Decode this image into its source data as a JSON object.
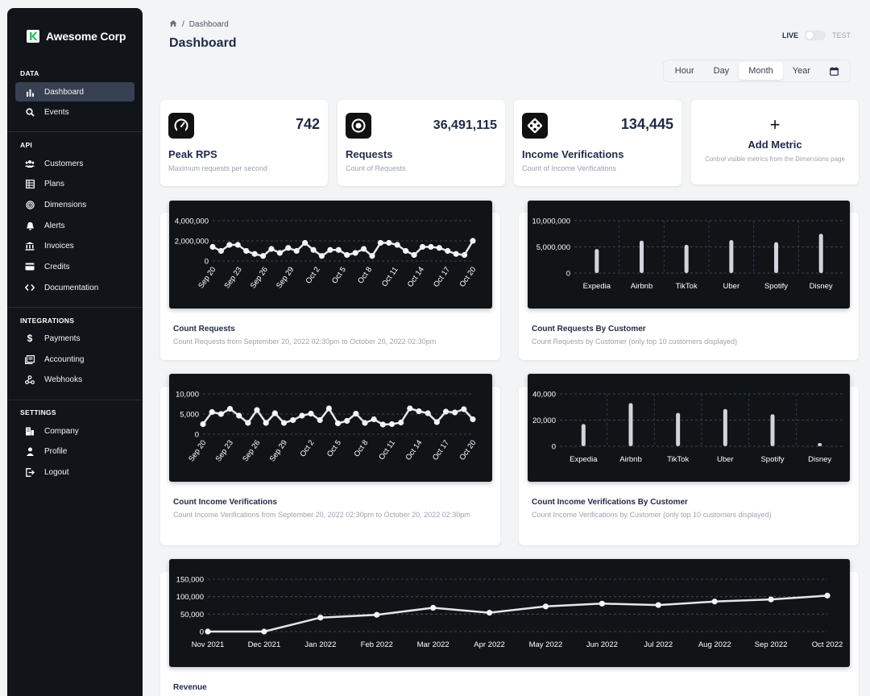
{
  "sidebar": {
    "brand": "Awesome Corp",
    "sections": {
      "data": "DATA",
      "api": "API",
      "integrations": "INTEGRATIONS",
      "settings": "SETTINGS"
    },
    "items": {
      "dashboard": "Dashboard",
      "events": "Events",
      "customers": "Customers",
      "plans": "Plans",
      "dimensions": "Dimensions",
      "alerts": "Alerts",
      "invoices": "Invoices",
      "credits": "Credits",
      "documentation": "Documentation",
      "payments": "Payments",
      "accounting": "Accounting",
      "webhooks": "Webhooks",
      "company": "Company",
      "profile": "Profile",
      "logout": "Logout"
    }
  },
  "header": {
    "breadcrumb_sep": "/",
    "breadcrumb": "Dashboard",
    "title": "Dashboard",
    "live": "LIVE",
    "test": "TEST",
    "ranges": [
      "Hour",
      "Day",
      "Month",
      "Year"
    ],
    "active_range": "Month"
  },
  "metrics": {
    "peak_rps": {
      "value": "742",
      "title": "Peak RPS",
      "sub": "Maximum requests per second"
    },
    "requests": {
      "value": "36,491,115",
      "title": "Requests",
      "sub": "Count of Requests"
    },
    "income": {
      "value": "134,445",
      "title": "Income Verifications",
      "sub": "Count of Income Verifications"
    },
    "add": {
      "plus": "+",
      "title": "Add Metric",
      "sub": "Control visible metrics from the Dimensions page"
    }
  },
  "charts": {
    "count_requests": {
      "title": "Count Requests",
      "sub": "Count Requests from September 20, 2022 02:30pm to October 20, 2022 02:30pm"
    },
    "requests_by_customer": {
      "title": "Count Requests By Customer",
      "sub": "Count Requests by Customer (only top 10 customers displayed)"
    },
    "count_income": {
      "title": "Count Income Verifications",
      "sub": "Count Income Verifications from September 20, 2022 02:30pm to October 20, 2022 02:30pm"
    },
    "income_by_customer": {
      "title": "Count Income Verifications By Customer",
      "sub": "Count Income Verifications by Customer (only top 10 customers displayed)"
    },
    "revenue": {
      "title": "Revenue"
    }
  },
  "colors": {
    "accent": "#1e2a4a",
    "panel": "#111417",
    "mark": "#e5e7eb"
  },
  "chart_data": [
    {
      "id": "count_requests",
      "type": "line",
      "ylim": [
        0,
        4000000
      ],
      "yticks": [
        0,
        2000000,
        4000000
      ],
      "ytick_labels": [
        "0",
        "2,000,000",
        "4,000,000"
      ],
      "xtick_labels": [
        "Sep 20",
        "Sep 23",
        "Sep 26",
        "Sep 29",
        "Oct 2",
        "Oct 5",
        "Oct 8",
        "Oct 11",
        "Oct 14",
        "Oct 17",
        "Oct 20"
      ],
      "values": [
        1400000,
        1000000,
        1600000,
        1600000,
        1000000,
        700000,
        500000,
        1200000,
        800000,
        1300000,
        1000000,
        1800000,
        1100000,
        500000,
        1100000,
        1100000,
        600000,
        800000,
        1200000,
        500000,
        1800000,
        1800000,
        1600000,
        1000000,
        600000,
        1400000,
        1400000,
        1300000,
        1000000,
        700000,
        600000,
        2000000
      ]
    },
    {
      "id": "requests_by_customer",
      "type": "bar",
      "ylim": [
        0,
        10000000
      ],
      "yticks": [
        0,
        5000000,
        10000000
      ],
      "ytick_labels": [
        "0",
        "5,000,000",
        "10,000,000"
      ],
      "categories": [
        "Expedia",
        "Airbnb",
        "TikTok",
        "Uber",
        "Spotify",
        "Disney"
      ],
      "values": [
        4600000,
        6200000,
        5400000,
        6300000,
        5900000,
        7500000
      ]
    },
    {
      "id": "count_income",
      "type": "line",
      "ylim": [
        0,
        10000
      ],
      "yticks": [
        0,
        5000,
        10000
      ],
      "ytick_labels": [
        "0",
        "5,000",
        "10,000"
      ],
      "xtick_labels": [
        "Sep 20",
        "Sep 23",
        "Sep 26",
        "Sep 29",
        "Oct 2",
        "Oct 5",
        "Oct 8",
        "Oct 11",
        "Oct 14",
        "Oct 17",
        "Oct 20"
      ],
      "values": [
        2500,
        5500,
        5000,
        6300,
        4600,
        2800,
        6000,
        2800,
        5200,
        2800,
        3500,
        4600,
        5100,
        3500,
        6400,
        2700,
        3300,
        5100,
        2800,
        3700,
        2400,
        2500,
        2900,
        6400,
        5700,
        5200,
        3000,
        5600,
        5400,
        6200,
        3700
      ]
    },
    {
      "id": "income_by_customer",
      "type": "bar",
      "ylim": [
        0,
        40000
      ],
      "yticks": [
        0,
        20000,
        40000
      ],
      "ytick_labels": [
        "0",
        "20,000",
        "40,000"
      ],
      "categories": [
        "Expedia",
        "Airbnb",
        "TikTok",
        "Uber",
        "Spotify",
        "Disney"
      ],
      "values": [
        17000,
        33000,
        25500,
        28500,
        24500,
        2500
      ]
    },
    {
      "id": "revenue",
      "type": "line",
      "ylim": [
        0,
        150000
      ],
      "yticks": [
        0,
        50000,
        100000,
        150000
      ],
      "ytick_labels": [
        "0",
        "50,000",
        "100,000",
        "150,000"
      ],
      "xtick_labels": [
        "Nov 2021",
        "Dec 2021",
        "Jan 2022",
        "Feb 2022",
        "Mar 2022",
        "Apr 2022",
        "May 2022",
        "Jun 2022",
        "Jul 2022",
        "Aug 2022",
        "Sep 2022",
        "Oct 2022"
      ],
      "values": [
        0,
        0,
        40000,
        48000,
        68000,
        54000,
        72000,
        80000,
        76000,
        86000,
        92000,
        103000
      ]
    }
  ]
}
